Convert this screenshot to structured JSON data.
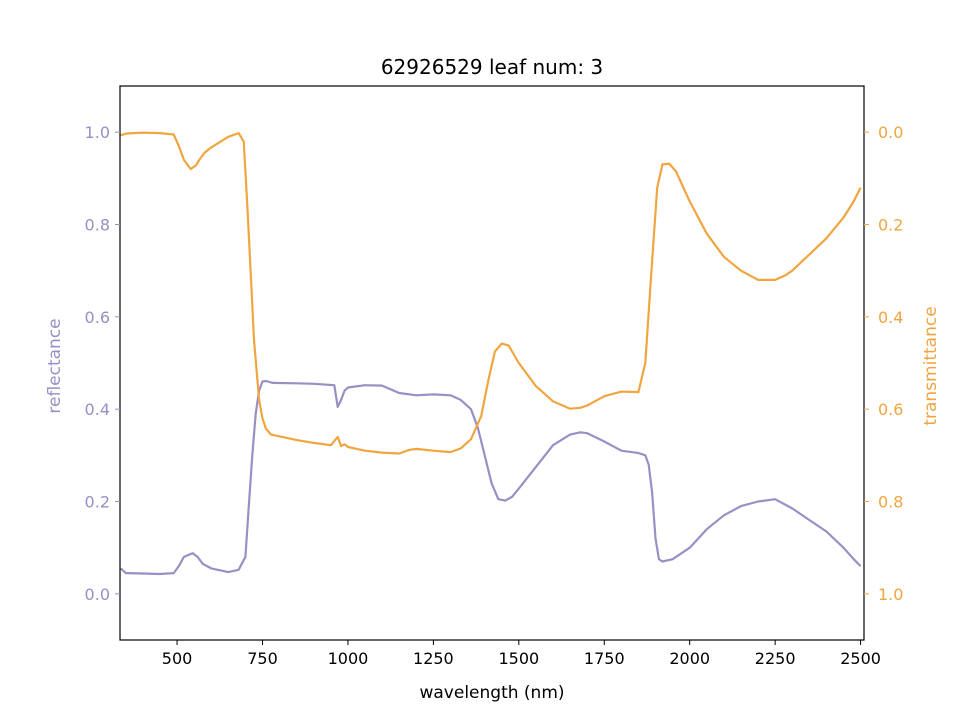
{
  "chart_data": {
    "type": "line",
    "title": "62926529 leaf num: 3",
    "xlabel": "wavelength (nm)",
    "ylabel_left": "reflectance",
    "ylabel_right": "transmittance",
    "x_ticks": [
      500,
      750,
      1000,
      1250,
      1500,
      1750,
      2000,
      2250,
      2500
    ],
    "y_left_ticks": [
      0.0,
      0.2,
      0.4,
      0.6,
      0.8,
      1.0
    ],
    "y_right_ticks": [
      0.0,
      0.2,
      0.4,
      0.6,
      0.8,
      1.0
    ],
    "xlim": [
      333,
      2510
    ],
    "ylim_left": [
      -0.1,
      1.1
    ],
    "ylim_right": [
      1.1,
      -0.1
    ],
    "right_axis_inverted": true,
    "grid": false,
    "colors": {
      "reflectance": "#9890c5",
      "transmittance": "#f0a540"
    },
    "series": [
      {
        "name": "reflectance",
        "axis": "left",
        "x": [
          335,
          350,
          400,
          450,
          490,
          505,
          520,
          545,
          560,
          575,
          600,
          650,
          680,
          700,
          710,
          720,
          730,
          740,
          750,
          760,
          780,
          850,
          900,
          960,
          970,
          980,
          990,
          1000,
          1050,
          1100,
          1150,
          1200,
          1250,
          1300,
          1330,
          1360,
          1380,
          1400,
          1420,
          1440,
          1460,
          1480,
          1500,
          1550,
          1600,
          1650,
          1680,
          1700,
          1750,
          1800,
          1850,
          1870,
          1880,
          1890,
          1900,
          1910,
          1920,
          1950,
          2000,
          2050,
          2100,
          2150,
          2200,
          2250,
          2300,
          2350,
          2400,
          2450,
          2480,
          2500
        ],
        "y": [
          0.055,
          0.045,
          0.044,
          0.043,
          0.045,
          0.06,
          0.08,
          0.088,
          0.08,
          0.065,
          0.055,
          0.047,
          0.052,
          0.08,
          0.19,
          0.3,
          0.39,
          0.44,
          0.46,
          0.461,
          0.457,
          0.456,
          0.455,
          0.452,
          0.405,
          0.42,
          0.44,
          0.447,
          0.452,
          0.451,
          0.435,
          0.43,
          0.432,
          0.43,
          0.42,
          0.4,
          0.36,
          0.3,
          0.24,
          0.205,
          0.202,
          0.21,
          0.228,
          0.275,
          0.322,
          0.345,
          0.35,
          0.348,
          0.33,
          0.31,
          0.305,
          0.3,
          0.28,
          0.22,
          0.12,
          0.075,
          0.07,
          0.075,
          0.1,
          0.14,
          0.17,
          0.19,
          0.2,
          0.205,
          0.185,
          0.16,
          0.135,
          0.1,
          0.075,
          0.06
        ]
      },
      {
        "name": "transmittance",
        "axis": "right",
        "x": [
          335,
          350,
          400,
          450,
          490,
          505,
          520,
          540,
          555,
          565,
          580,
          600,
          650,
          680,
          695,
          705,
          715,
          725,
          740,
          750,
          760,
          775,
          850,
          900,
          950,
          970,
          975,
          980,
          990,
          1000,
          1050,
          1100,
          1150,
          1180,
          1200,
          1250,
          1300,
          1330,
          1360,
          1390,
          1410,
          1430,
          1450,
          1470,
          1500,
          1550,
          1600,
          1650,
          1680,
          1700,
          1750,
          1800,
          1850,
          1870,
          1890,
          1905,
          1920,
          1940,
          1960,
          2000,
          2050,
          2100,
          2150,
          2200,
          2250,
          2280,
          2300,
          2350,
          2400,
          2450,
          2480,
          2500
        ],
        "y": [
          0.007,
          0.003,
          0.001,
          0.002,
          0.005,
          0.03,
          0.06,
          0.08,
          0.072,
          0.06,
          0.045,
          0.033,
          0.01,
          0.002,
          0.02,
          0.15,
          0.3,
          0.45,
          0.58,
          0.62,
          0.642,
          0.655,
          0.667,
          0.673,
          0.678,
          0.66,
          0.67,
          0.68,
          0.676,
          0.682,
          0.69,
          0.694,
          0.696,
          0.688,
          0.686,
          0.69,
          0.693,
          0.685,
          0.665,
          0.615,
          0.54,
          0.475,
          0.458,
          0.462,
          0.5,
          0.55,
          0.583,
          0.599,
          0.597,
          0.592,
          0.572,
          0.562,
          0.563,
          0.5,
          0.28,
          0.12,
          0.07,
          0.068,
          0.085,
          0.15,
          0.22,
          0.27,
          0.3,
          0.32,
          0.32,
          0.31,
          0.3,
          0.265,
          0.23,
          0.185,
          0.15,
          0.12
        ]
      }
    ]
  }
}
